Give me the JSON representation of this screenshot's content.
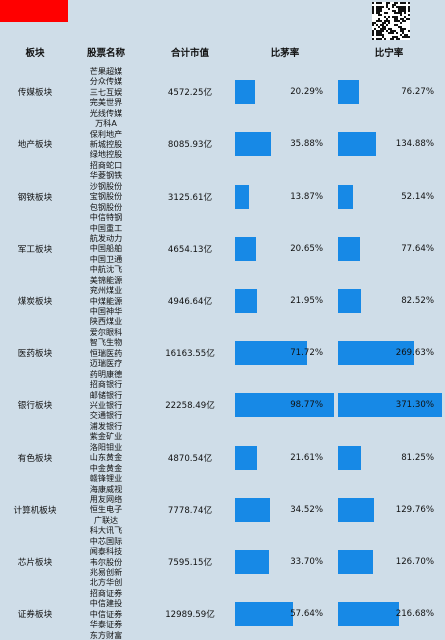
{
  "headers": {
    "sector": "板块",
    "stocks": "股票名称",
    "market_cap": "合计市值",
    "ratio_maotai": "比茅率",
    "ratio_ningde": "比宁率"
  },
  "chart_data": {
    "type": "table",
    "columns": [
      "板块",
      "股票名称",
      "合计市值",
      "比茅率",
      "比宁率"
    ],
    "rows": [
      {
        "sector": "传媒板块",
        "stocks": [
          "芒果超媒",
          "分众传媒",
          "三七互娱",
          "完美世界",
          "光线传媒"
        ],
        "market_cap": "4572.25亿",
        "ratio_maotai": 20.29,
        "ratio_ningde": 76.27
      },
      {
        "sector": "地产板块",
        "stocks": [
          "万科A",
          "保利地产",
          "新城控股",
          "绿地控股",
          "招商蛇口"
        ],
        "market_cap": "8085.93亿",
        "ratio_maotai": 35.88,
        "ratio_ningde": 134.88
      },
      {
        "sector": "钢铁板块",
        "stocks": [
          "华菱钢铁",
          "沙钢股份",
          "宝钢股份",
          "包钢股份",
          "中信特钢"
        ],
        "market_cap": "3125.61亿",
        "ratio_maotai": 13.87,
        "ratio_ningde": 52.14
      },
      {
        "sector": "军工板块",
        "stocks": [
          "中国重工",
          "航发动力",
          "中国船舶",
          "中国卫通",
          "中航沈飞"
        ],
        "market_cap": "4654.13亿",
        "ratio_maotai": 20.65,
        "ratio_ningde": 77.64
      },
      {
        "sector": "煤炭板块",
        "stocks": [
          "美锦能源",
          "兖州煤业",
          "中煤能源",
          "中国神华",
          "陕西煤业"
        ],
        "market_cap": "4946.64亿",
        "ratio_maotai": 21.95,
        "ratio_ningde": 82.52
      },
      {
        "sector": "医药板块",
        "stocks": [
          "爱尔眼科",
          "智飞生物",
          "恒瑞医药",
          "迈瑞医疗",
          "药明康德"
        ],
        "market_cap": "16163.55亿",
        "ratio_maotai": 71.72,
        "ratio_ningde": 269.63
      },
      {
        "sector": "银行板块",
        "stocks": [
          "招商银行",
          "邮储银行",
          "兴业银行",
          "交通银行",
          "浦发银行"
        ],
        "market_cap": "22258.49亿",
        "ratio_maotai": 98.77,
        "ratio_ningde": 371.3
      },
      {
        "sector": "有色板块",
        "stocks": [
          "紫金矿业",
          "洛阳钼业",
          "山东黄金",
          "中金黄金",
          "赣锋锂业"
        ],
        "market_cap": "4870.54亿",
        "ratio_maotai": 21.61,
        "ratio_ningde": 81.25
      },
      {
        "sector": "计算机板块",
        "stocks": [
          "海康威视",
          "用友网络",
          "恒生电子",
          "广联达",
          "科大讯飞"
        ],
        "market_cap": "7778.74亿",
        "ratio_maotai": 34.52,
        "ratio_ningde": 129.76
      },
      {
        "sector": "芯片板块",
        "stocks": [
          "中芯国际",
          "闻泰科技",
          "韦尔股份",
          "兆易创新",
          "北方华创"
        ],
        "market_cap": "7595.15亿",
        "ratio_maotai": 33.7,
        "ratio_ningde": 126.7
      },
      {
        "sector": "证券板块",
        "stocks": [
          "招商证券",
          "中信建投",
          "中信证券",
          "华泰证券",
          "东方财富"
        ],
        "market_cap": "12989.59亿",
        "ratio_maotai": 57.64,
        "ratio_ningde": 216.68
      }
    ]
  },
  "colors": {
    "background": "#cfdde8",
    "bar": "#1789e6",
    "tag": "#ff0000"
  }
}
